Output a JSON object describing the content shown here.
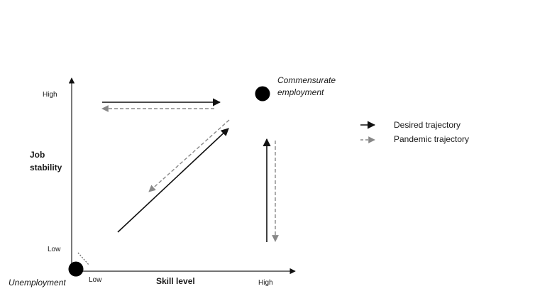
{
  "y_axis": {
    "title_line1": "Job",
    "title_line2": "stability",
    "high": "High",
    "low": "Low"
  },
  "x_axis": {
    "title": "Skill level",
    "low": "Low",
    "high": "High"
  },
  "nodes": {
    "commensurate_line1": "Commensurate",
    "commensurate_line2": "employment",
    "unemployment": "Unemployment"
  },
  "legend": {
    "desired": "Desired trajectory",
    "pandemic": "Pandemic trajectory"
  },
  "colors": {
    "desired": "#111111",
    "pandemic": "#888888",
    "node": "#000000"
  }
}
